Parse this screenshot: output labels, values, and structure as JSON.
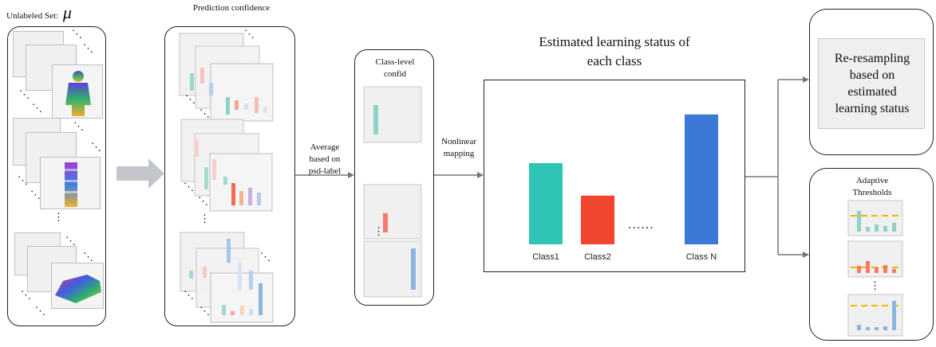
{
  "labels": {
    "unlabeled_set": "Unlabeled Set:",
    "mu": "μ",
    "prediction_confidence": "Prediction confidence",
    "class_level_line1": "Class-level",
    "class_level_line2": "confid",
    "average_line1": "Average",
    "average_line2": "based on",
    "average_line3": "psd-label",
    "nonlinear_line1": "Nonlinear",
    "nonlinear_line2": "mapping",
    "estimated_title_line1": "Estimated learning status of",
    "estimated_title_line2": "each class",
    "resampling_line1": "Re-resampling",
    "resampling_line2": "based on",
    "resampling_line3": "estimated",
    "resampling_line4": "learning status",
    "adaptive_line1": "Adaptive",
    "adaptive_line2": "Thresholds",
    "ellipsis": "......"
  },
  "colors": {
    "teal": "#2ec4b6",
    "red": "#f1452f",
    "blue": "#3b78d8",
    "orange_dash": "#f4b400"
  },
  "chart_data": {
    "type": "bar",
    "categories": [
      "Class1",
      "Class2",
      "Class N"
    ],
    "values": [
      0.6,
      0.36,
      0.96
    ],
    "ylim": [
      0,
      1
    ],
    "title": "Estimated learning status of each class",
    "xlabel": "",
    "ylabel": ""
  }
}
